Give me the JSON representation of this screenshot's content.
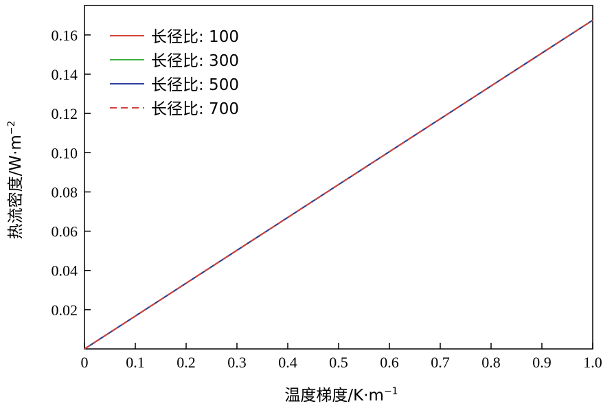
{
  "chart_data": {
    "type": "line",
    "xlabel": "温度梯度/K·m",
    "xlabel_sup": "−1",
    "ylabel": "热流密度/W·m",
    "ylabel_sup": "−2",
    "xlim": [
      0,
      1.0
    ],
    "ylim": [
      0,
      0.175
    ],
    "xticks": [
      "0",
      "0.1",
      "0.2",
      "0.3",
      "0.4",
      "0.5",
      "0.6",
      "0.7",
      "0.8",
      "0.9",
      "1.0"
    ],
    "yticks": [
      "0.02",
      "0.04",
      "0.06",
      "0.08",
      "0.10",
      "0.12",
      "0.14",
      "0.16"
    ],
    "grid": false,
    "legend_position": "top-left",
    "series": [
      {
        "name": "长径比: 100",
        "color": "#d1413b",
        "dash": "solid",
        "x": [
          0,
          1.0
        ],
        "y": [
          0,
          0.1675
        ]
      },
      {
        "name": "长径比: 300",
        "color": "#3fae3f",
        "dash": "solid",
        "x": [
          0,
          1.0
        ],
        "y": [
          0,
          0.1675
        ]
      },
      {
        "name": "长径比: 500",
        "color": "#2b3f9e",
        "dash": "solid",
        "x": [
          0,
          1.0
        ],
        "y": [
          0,
          0.1675
        ]
      },
      {
        "name": "长径比: 700",
        "color": "#d1413b",
        "dash": "dashed",
        "x": [
          0,
          1.0
        ],
        "y": [
          0,
          0.1675
        ]
      }
    ]
  }
}
